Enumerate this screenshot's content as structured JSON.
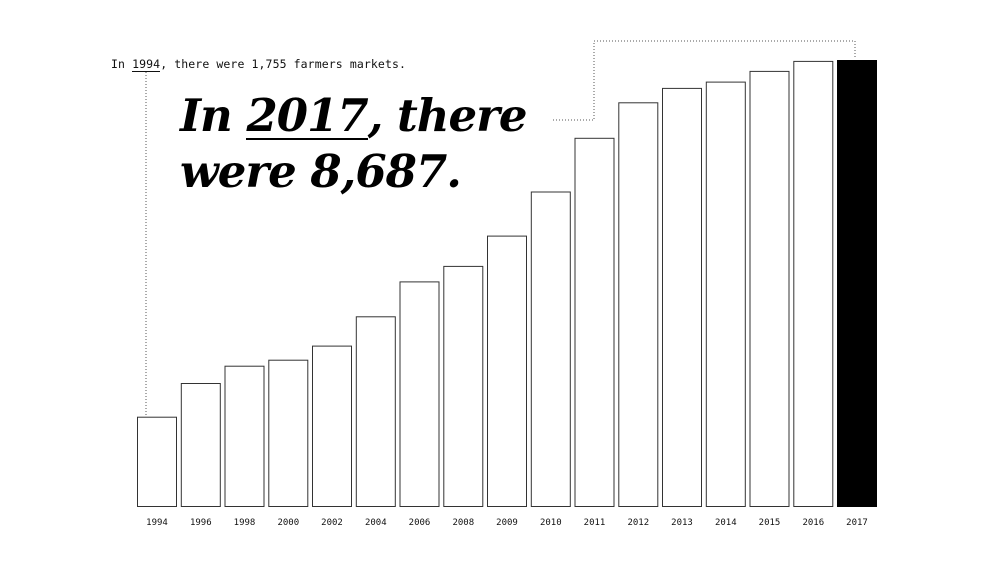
{
  "annotation_small": {
    "prefix": "In ",
    "year": "1994",
    "suffix": ", there were 1,755 farmers markets."
  },
  "headline": {
    "prefix": "In ",
    "year": "2017",
    "line1_suffix": ", there",
    "line2": "were 8,687."
  },
  "chart_data": {
    "type": "bar",
    "title": "",
    "xlabel": "",
    "ylabel": "",
    "categories": [
      "1994",
      "1996",
      "1998",
      "2000",
      "2002",
      "2004",
      "2006",
      "2008",
      "2009",
      "2010",
      "2011",
      "2012",
      "2013",
      "2014",
      "2015",
      "2016",
      "2017"
    ],
    "values": [
      1755,
      2410,
      2746,
      2863,
      3137,
      3706,
      4385,
      4685,
      5274,
      6132,
      7175,
      7864,
      8144,
      8268,
      8476,
      8669,
      8687
    ],
    "ylim": [
      0,
      8687
    ],
    "grid": false,
    "highlight_index": 16,
    "colors": {
      "bar_fill": "#ffffff",
      "bar_stroke": "#333333",
      "highlight_fill": "#000000"
    }
  }
}
